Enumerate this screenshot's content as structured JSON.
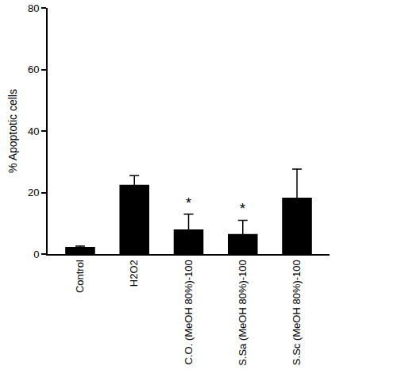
{
  "chart_data": {
    "type": "bar",
    "y_label": "% Apoptotic cells",
    "categories": [
      "Control",
      "H2O2",
      "C.O. (MeOH 80%)-100",
      "S.Sa (MeOH 80%)-100",
      "S.Sc (MeOH 80%)-100"
    ],
    "values": [
      2.3,
      22.5,
      8.0,
      6.5,
      18.3
    ],
    "errors": [
      0.3,
      3.0,
      5.0,
      4.5,
      9.3
    ],
    "color": "#000000",
    "ylim": [
      0,
      80
    ],
    "yticks": [
      0,
      20,
      40,
      60,
      80
    ],
    "grid": false,
    "annotations": [
      {
        "category": "C.O. (MeOH 80%)-100",
        "text": "*"
      },
      {
        "category": "S.Sa (MeOH 80%)-100",
        "text": "*"
      }
    ]
  }
}
